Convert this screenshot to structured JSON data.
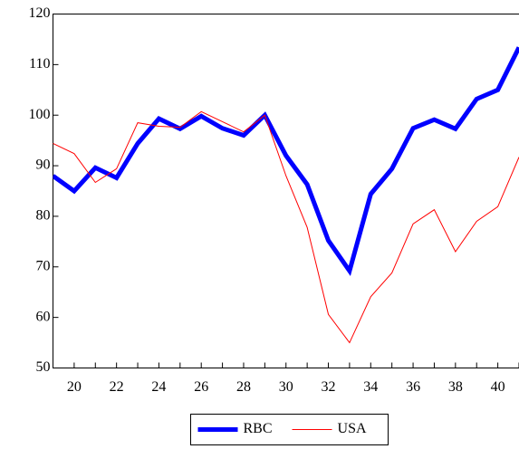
{
  "chart_data": {
    "type": "line",
    "x": [
      19,
      20,
      21,
      22,
      23,
      24,
      25,
      26,
      27,
      28,
      29,
      30,
      31,
      32,
      33,
      34,
      35,
      36,
      37,
      38,
      39,
      40,
      41
    ],
    "series": [
      {
        "name": "RBC",
        "color": "#0000ff",
        "values": [
          88,
          85,
          89.6,
          87.6,
          94.4,
          99.3,
          97.3,
          99.8,
          97.4,
          96,
          100,
          92,
          86.3,
          75.2,
          69.2,
          84.4,
          89.4,
          97.4,
          99.1,
          97.3,
          103.2,
          105,
          113.4
        ]
      },
      {
        "name": "USA",
        "color": "#ff0000",
        "values": [
          94.4,
          92.4,
          86.7,
          89.4,
          98.5,
          97.8,
          97.6,
          100.7,
          98.7,
          96.7,
          100,
          88,
          77.8,
          60.6,
          55,
          64.1,
          68.8,
          78.5,
          81.3,
          73,
          79,
          81.9,
          91.7
        ]
      }
    ],
    "xlim": [
      19,
      41
    ],
    "xticks": [
      20,
      22,
      24,
      26,
      28,
      30,
      32,
      34,
      36,
      38,
      40
    ],
    "ylim": [
      50,
      120
    ],
    "yticks": [
      50,
      60,
      70,
      80,
      90,
      100,
      110,
      120
    ],
    "legend": "bottom"
  }
}
